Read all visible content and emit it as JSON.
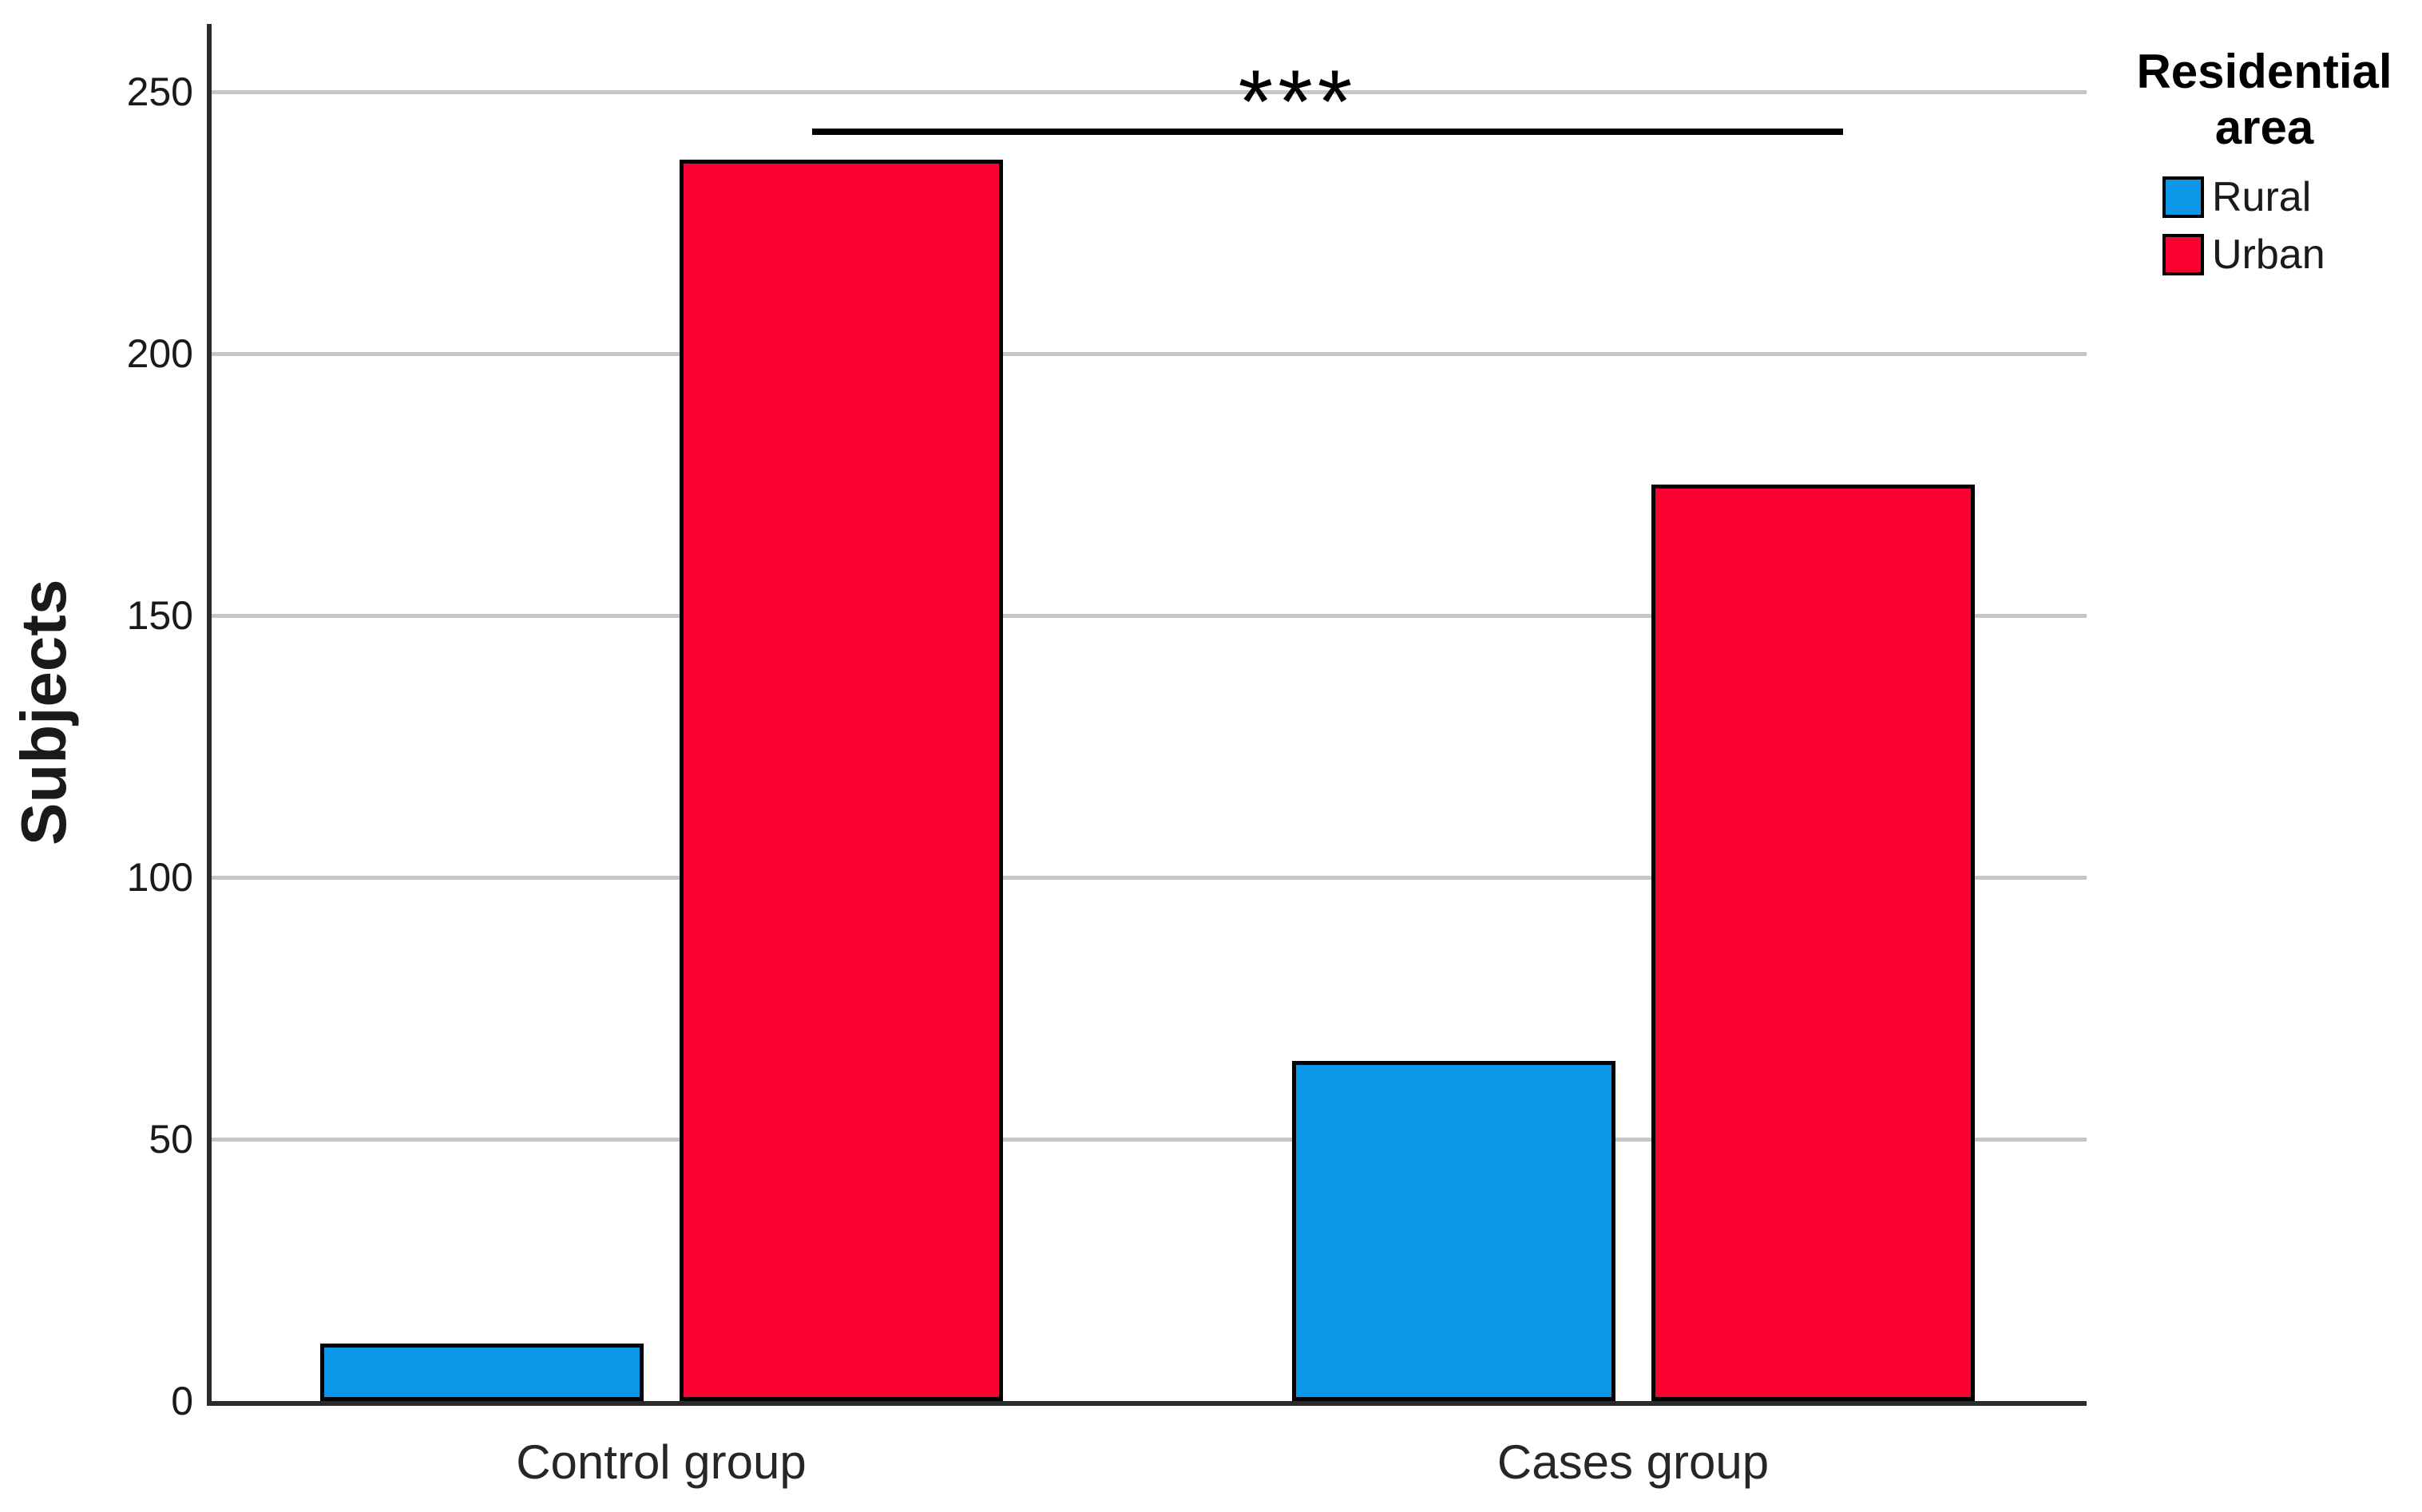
{
  "chart_data": {
    "type": "bar",
    "title": "",
    "xlabel": "",
    "ylabel": "Subjects",
    "categories": [
      "Control group",
      "Cases group"
    ],
    "series": [
      {
        "name": "Rural",
        "color": "#0B96E8",
        "values": [
          11,
          65
        ]
      },
      {
        "name": "Urban",
        "color": "#F90231",
        "values": [
          237,
          175
        ]
      }
    ],
    "ylim": [
      0,
      263
    ],
    "yticks": [
      0,
      50,
      100,
      150,
      200,
      250
    ],
    "grid": "horizontal",
    "legend": {
      "title": "Residential area",
      "title_lines": [
        "Residential",
        "area"
      ],
      "position": "top-right",
      "entries": [
        "Rural",
        "Urban"
      ]
    },
    "annotation": {
      "text": "***",
      "compares": [
        "Control group / Urban",
        "Cases group / Urban"
      ]
    }
  },
  "colors": {
    "rural": "#0B96E8",
    "urban": "#F90231",
    "gridline": "#C6C6C6",
    "axis": "#2B2B2B",
    "text": "#1A1A1A",
    "significance_line": "#000000"
  }
}
